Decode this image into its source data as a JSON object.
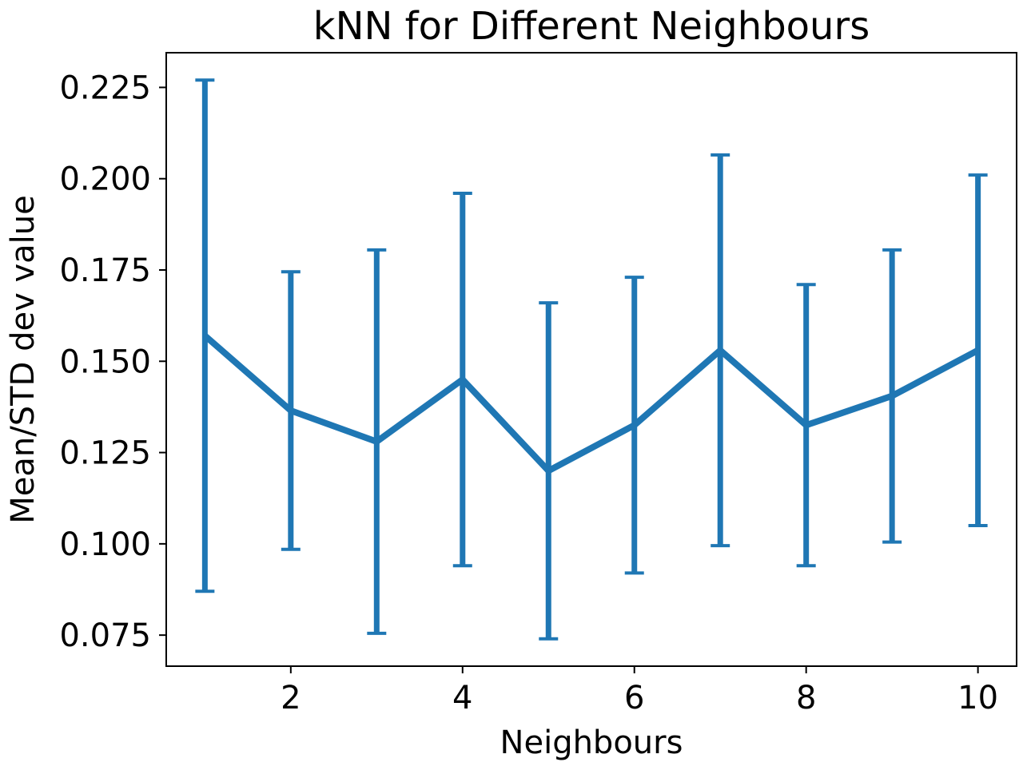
{
  "chart_data": {
    "type": "line",
    "title": "kNN for Different Neighbours",
    "xlabel": "Neighbours",
    "ylabel": "Mean/STD dev value",
    "xlim": [
      0.55,
      10.45
    ],
    "ylim": [
      0.0665,
      0.2345
    ],
    "x_ticks": [
      2,
      4,
      6,
      8,
      10
    ],
    "x_tick_labels": [
      "2",
      "4",
      "6",
      "8",
      "10"
    ],
    "y_ticks": [
      0.075,
      0.1,
      0.125,
      0.15,
      0.175,
      0.2,
      0.225
    ],
    "y_tick_labels": [
      "0.075",
      "0.100",
      "0.125",
      "0.150",
      "0.175",
      "0.200",
      "0.225"
    ],
    "grid": false,
    "legend": "none",
    "colors": {
      "series": "#1f77b4",
      "axes": "#000000"
    },
    "series": [
      {
        "x": [
          1,
          2,
          3,
          4,
          5,
          6,
          7,
          8,
          9,
          10
        ],
        "y": [
          0.157,
          0.1365,
          0.128,
          0.145,
          0.12,
          0.1325,
          0.153,
          0.1325,
          0.1405,
          0.153
        ],
        "yerr": [
          0.07,
          0.038,
          0.0525,
          0.051,
          0.046,
          0.0405,
          0.0535,
          0.0385,
          0.04,
          0.048
        ]
      }
    ]
  }
}
